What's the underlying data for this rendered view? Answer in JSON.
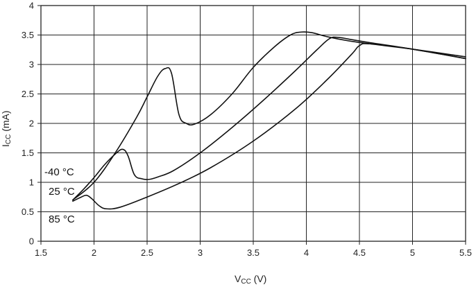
{
  "chart_data": {
    "type": "line",
    "title": "",
    "xlabel": {
      "main": "V",
      "sub": "CC",
      "unit": " (V)"
    },
    "ylabel": {
      "main": "I",
      "sub": "CC",
      "unit": " (mA)"
    },
    "xlim": [
      1.5,
      5.5
    ],
    "ylim": [
      0,
      4
    ],
    "grid": true,
    "x_ticks": [
      1.5,
      2,
      2.5,
      3,
      3.5,
      4,
      4.5,
      5,
      5.5
    ],
    "x_tick_labels": [
      "1.5",
      "2",
      "2.5",
      "3",
      "3.5",
      "4",
      "4.5",
      "5",
      "5.5"
    ],
    "y_ticks": [
      0,
      0.5,
      1,
      1.5,
      2,
      2.5,
      3,
      3.5,
      4
    ],
    "y_tick_labels": [
      "0",
      "0.5",
      "1",
      "1.5",
      "2",
      "2.5",
      "3",
      "3.5",
      "4"
    ],
    "series": [
      {
        "name": "-40 °C",
        "x": [
          1.8,
          2.0,
          2.2,
          2.4,
          2.5,
          2.6,
          2.67,
          2.73,
          2.8,
          2.87,
          2.95,
          3.1,
          3.3,
          3.5,
          3.7,
          3.85,
          3.95,
          4.05,
          4.2,
          4.4,
          4.6,
          5.0,
          5.5
        ],
        "y": [
          0.7,
          1.0,
          1.5,
          2.1,
          2.45,
          2.8,
          2.93,
          2.85,
          2.15,
          2.0,
          1.99,
          2.15,
          2.5,
          2.95,
          3.3,
          3.5,
          3.55,
          3.54,
          3.47,
          3.4,
          3.35,
          3.26,
          3.13
        ]
      },
      {
        "name": "25 °C",
        "x": [
          1.8,
          1.9,
          2.0,
          2.1,
          2.2,
          2.27,
          2.32,
          2.38,
          2.45,
          2.52,
          2.6,
          2.75,
          3.0,
          3.3,
          3.6,
          3.9,
          4.1,
          4.22,
          4.3,
          4.4,
          4.6,
          5.0,
          5.5
        ],
        "y": [
          0.7,
          0.88,
          1.08,
          1.3,
          1.48,
          1.56,
          1.45,
          1.13,
          1.06,
          1.05,
          1.09,
          1.2,
          1.5,
          1.93,
          2.4,
          2.9,
          3.25,
          3.44,
          3.46,
          3.43,
          3.37,
          3.26,
          3.1
        ]
      },
      {
        "name": "85 °C",
        "x": [
          1.8,
          1.88,
          1.93,
          1.98,
          2.05,
          2.12,
          2.25,
          2.5,
          2.8,
          3.1,
          3.5,
          3.9,
          4.2,
          4.43,
          4.5,
          4.6,
          5.0,
          5.5
        ],
        "y": [
          0.68,
          0.75,
          0.78,
          0.72,
          0.6,
          0.55,
          0.58,
          0.75,
          0.98,
          1.25,
          1.7,
          2.25,
          2.75,
          3.18,
          3.32,
          3.35,
          3.26,
          3.1
        ]
      }
    ]
  }
}
